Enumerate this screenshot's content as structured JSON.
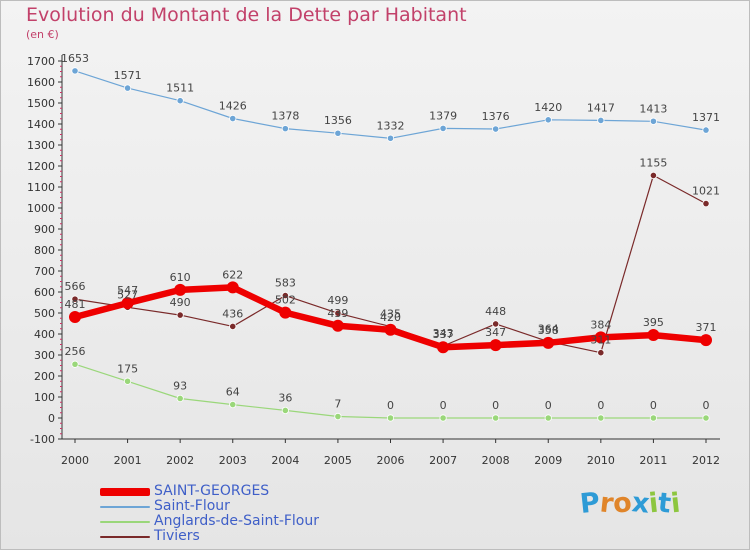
{
  "header": {
    "title": "Evolution du Montant de la Dette par Habitant",
    "subtitle": "(en €)"
  },
  "logo": {
    "text": "Proxiti",
    "letter_colors": [
      "#2e9bd6",
      "#e0852a",
      "#e0852a",
      "#2e9bd6",
      "#8dc63f",
      "#2e9bd6",
      "#8dc63f"
    ]
  },
  "chart_data": {
    "type": "line",
    "title": "Evolution du Montant de la Dette par Habitant",
    "subtitle": "(en €)",
    "xlabel": "",
    "ylabel": "",
    "x": [
      "2000",
      "2001",
      "2002",
      "2003",
      "2004",
      "2005",
      "2006",
      "2007",
      "2008",
      "2009",
      "2010",
      "2011",
      "2012"
    ],
    "ylim": [
      -100,
      1700
    ],
    "yticks": [
      -100,
      0,
      100,
      200,
      300,
      400,
      500,
      600,
      700,
      800,
      900,
      1000,
      1100,
      1200,
      1300,
      1400,
      1500,
      1600,
      1700
    ],
    "grid": false,
    "legend_position": "bottom-left",
    "series": [
      {
        "name": "SAINT-GEORGES",
        "color": "#ee0000",
        "values": [
          481,
          547,
          610,
          622,
          502,
          439,
          420,
          337,
          347,
          358,
          384,
          395,
          371
        ]
      },
      {
        "name": "Saint-Flour",
        "color": "#6da5d6",
        "values": [
          1653,
          1571,
          1511,
          1426,
          1378,
          1356,
          1332,
          1379,
          1376,
          1420,
          1417,
          1413,
          1371
        ]
      },
      {
        "name": "Anglards-de-Saint-Flour",
        "color": "#9ad77a",
        "values": [
          256,
          175,
          93,
          64,
          36,
          7,
          0,
          0,
          0,
          0,
          0,
          0,
          0
        ]
      },
      {
        "name": "Tiviers",
        "color": "#7a2a2a",
        "values": [
          566,
          527,
          490,
          436,
          583,
          499,
          435,
          343,
          448,
          364,
          311,
          1155,
          1021
        ]
      }
    ]
  }
}
